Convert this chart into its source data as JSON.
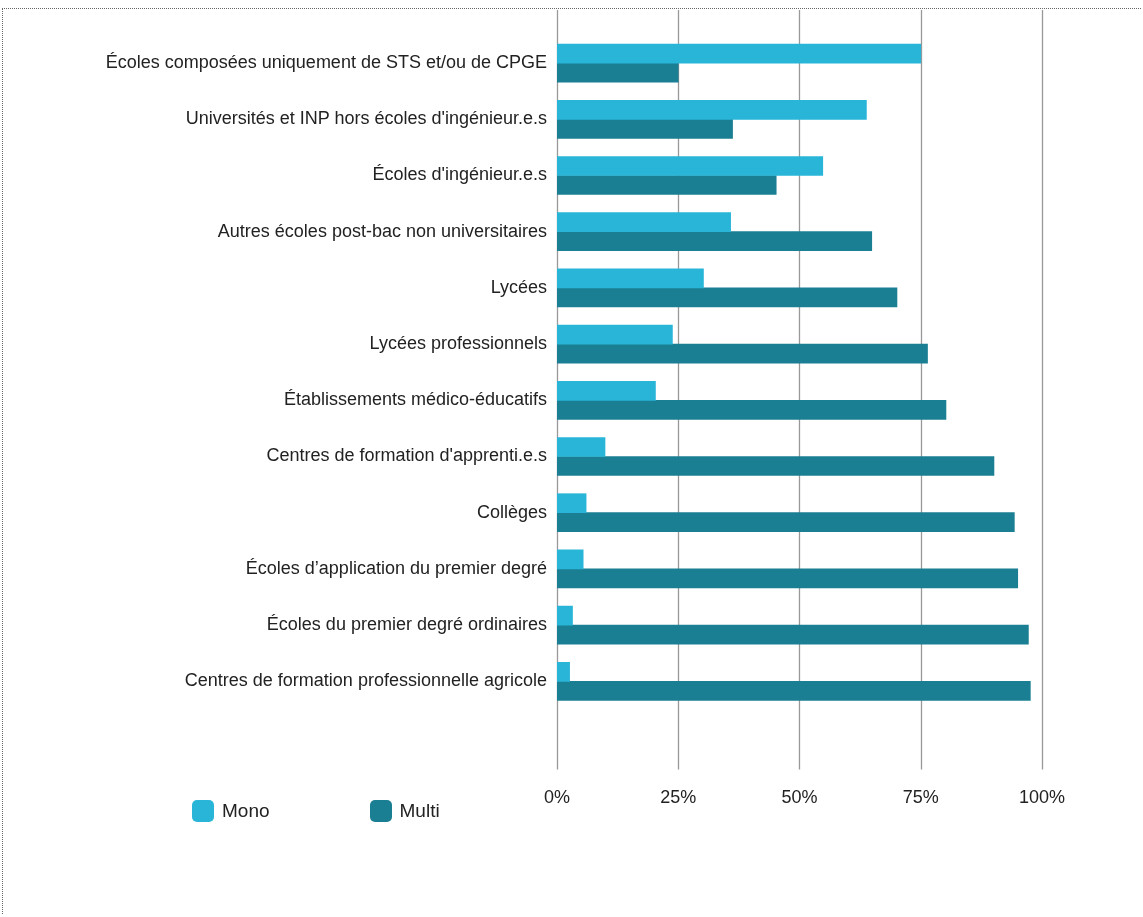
{
  "chart_data": {
    "type": "bar",
    "orientation": "horizontal",
    "categories": [
      "Écoles composées uniquement de STS et/ou de CPGE",
      "Universités et INP hors écoles d'ingénieur.e.s",
      "Écoles d'ingénieur.e.s",
      "Autres écoles post-bac non universitaires",
      "Lycées",
      "Lycées professionnels",
      "Établissements médico-éducatifs",
      "Centres de formation d'apprenti.e.s",
      "Collèges",
      "Écoles d’application du premier degré",
      "Écoles du premier degré ordinaires",
      "Centres de formation professionnelle agricole"
    ],
    "series": [
      {
        "name": "Mono",
        "color": "#29b5d8",
        "values": [
          75,
          63.8,
          54.8,
          35.8,
          30.2,
          23.8,
          20.3,
          9.9,
          6,
          5.4,
          3.2,
          2.6
        ]
      },
      {
        "name": "Multi",
        "color": "#1b7f93",
        "values": [
          25,
          36.2,
          45.2,
          64.9,
          70.1,
          76.4,
          80.2,
          90.1,
          94.3,
          95,
          97.2,
          97.6
        ]
      }
    ],
    "xlim": [
      0,
      100
    ],
    "xticks": [
      {
        "value": 0,
        "label": "0%"
      },
      {
        "value": 25,
        "label": "25%"
      },
      {
        "value": 50,
        "label": "50%"
      },
      {
        "value": 75,
        "label": "75%"
      },
      {
        "value": 100,
        "label": "100%"
      }
    ],
    "grid": "x",
    "legend": "bottom left"
  }
}
